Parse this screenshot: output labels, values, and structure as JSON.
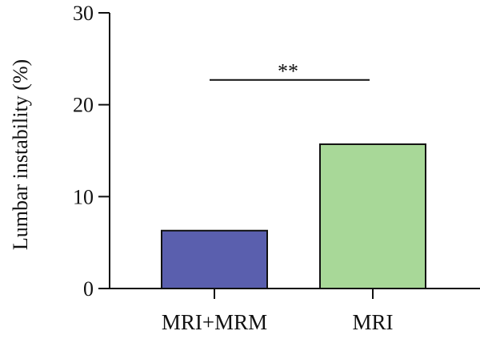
{
  "chart_data": {
    "type": "bar",
    "categories": [
      "MRI+MRM",
      "MRI"
    ],
    "values": [
      6.3,
      15.7
    ],
    "colors": [
      "#5a5fae",
      "#a8d898"
    ],
    "ylabel": "Lumbar instability (%)",
    "xlabel": "",
    "ylim": [
      0,
      30
    ],
    "yticks": [
      0,
      10,
      20,
      30
    ],
    "grid": false,
    "annotation": {
      "text": "**",
      "between": [
        "MRI+MRM",
        "MRI"
      ],
      "y": 22.7
    }
  }
}
